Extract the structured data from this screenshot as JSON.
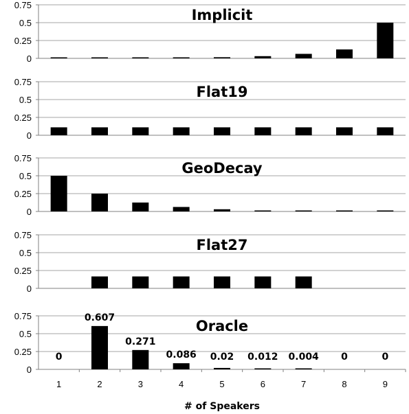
{
  "chart_data": {
    "type": "bar",
    "xlabel": "# of Speakers",
    "categories": [
      "1",
      "2",
      "3",
      "4",
      "5",
      "6",
      "7",
      "8",
      "9"
    ],
    "ylim": [
      0,
      0.75
    ],
    "yticks": [
      "0",
      "0.25",
      "0.5",
      "0.75"
    ],
    "grid": "horizontal",
    "layout": "5 stacked panels sharing x axis",
    "bar_color": "#000000",
    "panels": [
      {
        "title": "Implicit",
        "values": [
          0.004,
          0.004,
          0.004,
          0.004,
          0.016,
          0.031,
          0.063,
          0.125,
          0.5
        ]
      },
      {
        "title": "Flat19",
        "values": [
          0.111,
          0.111,
          0.111,
          0.111,
          0.111,
          0.111,
          0.111,
          0.111,
          0.111
        ]
      },
      {
        "title": "GeoDecay",
        "values": [
          0.5,
          0.25,
          0.125,
          0.063,
          0.031,
          0.008,
          0.004,
          0.004,
          0.004
        ]
      },
      {
        "title": "Flat27",
        "values": [
          0,
          0.167,
          0.167,
          0.167,
          0.167,
          0.167,
          0.167,
          0,
          0
        ]
      },
      {
        "title": "Oracle",
        "values": [
          0,
          0.607,
          0.271,
          0.086,
          0.02,
          0.012,
          0.004,
          0,
          0
        ],
        "data_labels": [
          "0",
          "0.607",
          "0.271",
          "0.086",
          "0.02",
          "0.012",
          "0.004",
          "0",
          "0"
        ]
      }
    ]
  }
}
